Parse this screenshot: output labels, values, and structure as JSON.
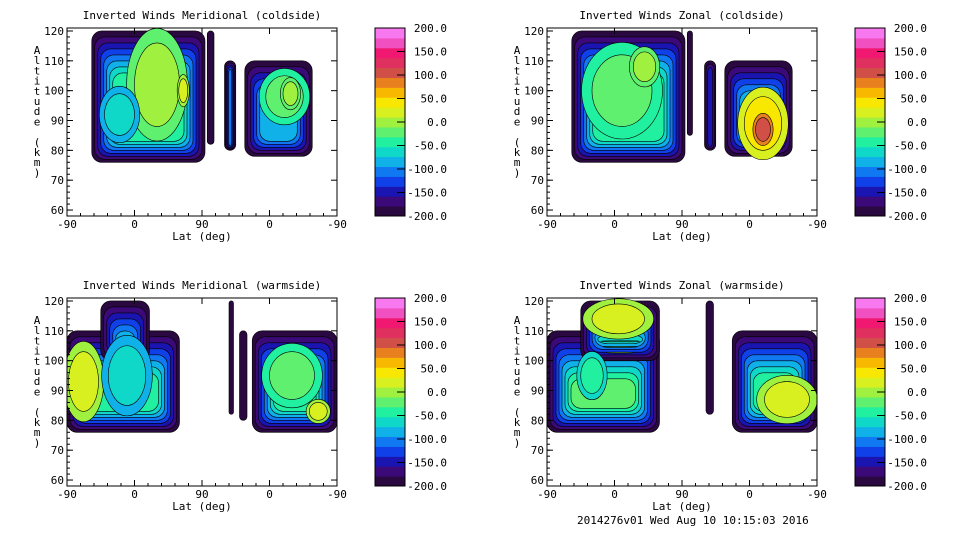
{
  "colorbar": {
    "levels": [
      -200,
      -175,
      -150,
      -125,
      -100,
      -75,
      -50,
      -25,
      0,
      25,
      50,
      75,
      100,
      125,
      150,
      175,
      200
    ],
    "colors": [
      "#2a0840",
      "#3c0a78",
      "#1a14b0",
      "#1040e8",
      "#1078f0",
      "#10b0e8",
      "#10d8c8",
      "#20f0a0",
      "#60f070",
      "#a0f040",
      "#d8f020",
      "#f8e800",
      "#f8b800",
      "#e88020",
      "#d05048",
      "#e03060"
    ],
    "top_colors": [
      "#f01870",
      "#f050c0",
      "#f878f0"
    ],
    "tick_labels": [
      "200.0",
      "150.0",
      "100.0",
      "50.0",
      "0.0",
      "-50.0",
      "-100.0",
      "-150.0",
      "-200.0"
    ]
  },
  "footer": "2014276v01 Wed Aug 10 10:15:03 2016",
  "chart_data": [
    {
      "type": "contour",
      "title": "Inverted Winds Meridional (coldside)",
      "xlabel": "Lat (deg)",
      "ylabel": "Altitude (km)",
      "xticks": [
        "-90",
        "0",
        "90",
        "0",
        "-90"
      ],
      "xlim": [
        0,
        360
      ],
      "yticks": [
        "60",
        "70",
        "80",
        "90",
        "100",
        "110",
        "120"
      ],
      "ylim": [
        58,
        121
      ],
      "swaths": [
        {
          "x": [
            33,
            184
          ],
          "alt": [
            76,
            120
          ],
          "core": -25
        },
        {
          "x": [
            187,
            196
          ],
          "alt": [
            82,
            120
          ],
          "core": -200
        },
        {
          "x": [
            210,
            225
          ],
          "alt": [
            80,
            110
          ],
          "core": -100
        },
        {
          "x": [
            237,
            327
          ],
          "alt": [
            78,
            110
          ],
          "core": -75
        }
      ],
      "blobs": [
        {
          "x": 120,
          "alt": 102,
          "rx": 30,
          "ry": 14,
          "v": 25
        },
        {
          "x": 155,
          "alt": 100,
          "rx": 6,
          "ry": 4,
          "v": 50
        },
        {
          "x": 70,
          "alt": 92,
          "rx": 20,
          "ry": 7,
          "v": -50
        },
        {
          "x": 290,
          "alt": 98,
          "rx": 25,
          "ry": 7,
          "v": 0
        },
        {
          "x": 298,
          "alt": 99,
          "rx": 10,
          "ry": 4,
          "v": 25
        }
      ]
    },
    {
      "type": "contour",
      "title": "Inverted Winds Zonal (coldside)",
      "xlabel": "Lat (deg)",
      "ylabel": "Altitude (km)",
      "xticks": [
        "-90",
        "0",
        "90",
        "0",
        "-90"
      ],
      "xlim": [
        0,
        360
      ],
      "yticks": [
        "60",
        "70",
        "80",
        "90",
        "100",
        "110",
        "120"
      ],
      "ylim": [
        58,
        121
      ],
      "swaths": [
        {
          "x": [
            33,
            184
          ],
          "alt": [
            76,
            120
          ],
          "core": -25
        },
        {
          "x": [
            187,
            194
          ],
          "alt": [
            85,
            120
          ],
          "core": -200
        },
        {
          "x": [
            210,
            225
          ],
          "alt": [
            80,
            110
          ],
          "core": -150
        },
        {
          "x": [
            237,
            327
          ],
          "alt": [
            78,
            110
          ],
          "core": -50
        }
      ],
      "blobs": [
        {
          "x": 100,
          "alt": 100,
          "rx": 40,
          "ry": 12,
          "v": 0
        },
        {
          "x": 130,
          "alt": 108,
          "rx": 15,
          "ry": 5,
          "v": 25
        },
        {
          "x": 288,
          "alt": 89,
          "rx": 25,
          "ry": 9,
          "v": 75
        },
        {
          "x": 288,
          "alt": 87,
          "rx": 10,
          "ry": 4,
          "v": 150
        }
      ]
    },
    {
      "type": "contour",
      "title": "Inverted Winds Meridional (warmside)",
      "xlabel": "Lat (deg)",
      "ylabel": "Altitude (km)",
      "xticks": [
        "-90",
        "0",
        "90",
        "0",
        "-90"
      ],
      "xlim": [
        0,
        360
      ],
      "yticks": [
        "60",
        "70",
        "80",
        "90",
        "100",
        "110",
        "120"
      ],
      "ylim": [
        58,
        121
      ],
      "swaths": [
        {
          "x": [
            0,
            150
          ],
          "alt": [
            76,
            110
          ],
          "core": -25
        },
        {
          "x": [
            45,
            110
          ],
          "alt": [
            100,
            120
          ],
          "core": -50
        },
        {
          "x": [
            216,
            222
          ],
          "alt": [
            82,
            120
          ],
          "core": -200
        },
        {
          "x": [
            230,
            240
          ],
          "alt": [
            80,
            110
          ],
          "core": -200
        },
        {
          "x": [
            247,
            360
          ],
          "alt": [
            76,
            110
          ],
          "core": -25
        }
      ],
      "blobs": [
        {
          "x": 22,
          "alt": 93,
          "rx": 20,
          "ry": 10,
          "v": 50
        },
        {
          "x": 80,
          "alt": 95,
          "rx": 25,
          "ry": 10,
          "v": -50
        },
        {
          "x": 300,
          "alt": 95,
          "rx": 30,
          "ry": 8,
          "v": 0
        },
        {
          "x": 335,
          "alt": 83,
          "rx": 12,
          "ry": 3,
          "v": 50
        }
      ]
    },
    {
      "type": "contour",
      "title": "Inverted Winds Zonal (warmside)",
      "xlabel": "Lat (deg)",
      "ylabel": "Altitude (km)",
      "xticks": [
        "-90",
        "0",
        "90",
        "0",
        "-90"
      ],
      "xlim": [
        0,
        360
      ],
      "yticks": [
        "60",
        "70",
        "80",
        "90",
        "100",
        "110",
        "120"
      ],
      "ylim": [
        58,
        121
      ],
      "swaths": [
        {
          "x": [
            0,
            150
          ],
          "alt": [
            76,
            110
          ],
          "core": 0
        },
        {
          "x": [
            45,
            150
          ],
          "alt": [
            100,
            120
          ],
          "core": 25
        },
        {
          "x": [
            212,
            222
          ],
          "alt": [
            82,
            120
          ],
          "core": -200
        },
        {
          "x": [
            247,
            360
          ],
          "alt": [
            76,
            110
          ],
          "core": -25
        }
      ],
      "blobs": [
        {
          "x": 95,
          "alt": 114,
          "rx": 35,
          "ry": 5,
          "v": 50
        },
        {
          "x": 320,
          "alt": 87,
          "rx": 30,
          "ry": 6,
          "v": 50
        },
        {
          "x": 60,
          "alt": 95,
          "rx": 15,
          "ry": 6,
          "v": -25
        }
      ]
    }
  ]
}
